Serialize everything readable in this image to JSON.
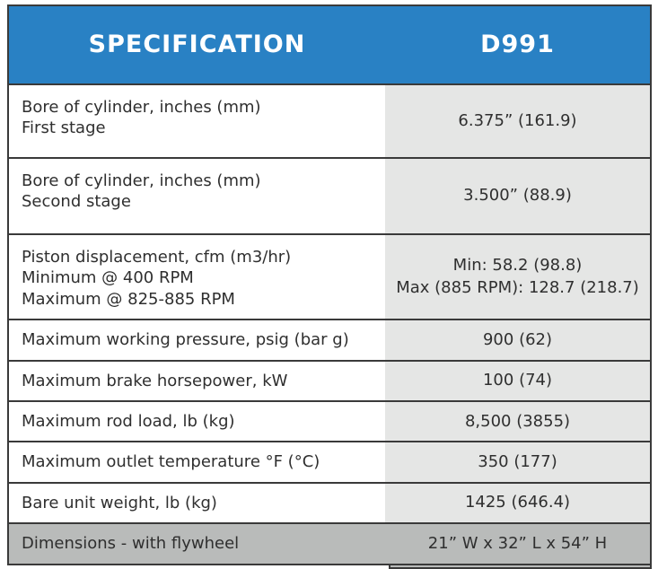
{
  "header": {
    "spec_label": "SPECIFICATION",
    "model_label": "D991"
  },
  "rows": [
    {
      "spec": "Bore of cylinder, inches (mm)\nFirst stage",
      "value": "6.375” (161.9)"
    },
    {
      "spec": "Bore of cylinder, inches (mm)\nSecond stage",
      "value": "3.500” (88.9)"
    },
    {
      "spec": "Piston displacement, cfm (m3/hr)\nMinimum @ 400 RPM\nMaximum @ 825-885 RPM",
      "value": "Min: 58.2 (98.8)\nMax (885 RPM): 128.7 (218.7)"
    },
    {
      "spec": "Maximum working pressure, psig (bar g)",
      "value": "900 (62)"
    },
    {
      "spec": "Maximum brake horsepower, kW",
      "value": "100 (74)"
    },
    {
      "spec": "Maximum rod load, lb (kg)",
      "value": "8,500 (3855)"
    },
    {
      "spec": "Maximum outlet temperature °F (°C)",
      "value": "350 (177)"
    },
    {
      "spec": "Bare unit weight, lb (kg)",
      "value": "1425 (646.4)"
    },
    {
      "spec": "Dimensions - with flywheel",
      "value": "21” W x 32” L x 54” H"
    }
  ],
  "colors": {
    "header_bg": "#2981C4",
    "value_col_bg": "#E5E6E5",
    "footer_bg": "#B9BBBA",
    "border": "#3A3A3A",
    "text": "#2F2F2F",
    "header_text": "#FFFFFF"
  }
}
